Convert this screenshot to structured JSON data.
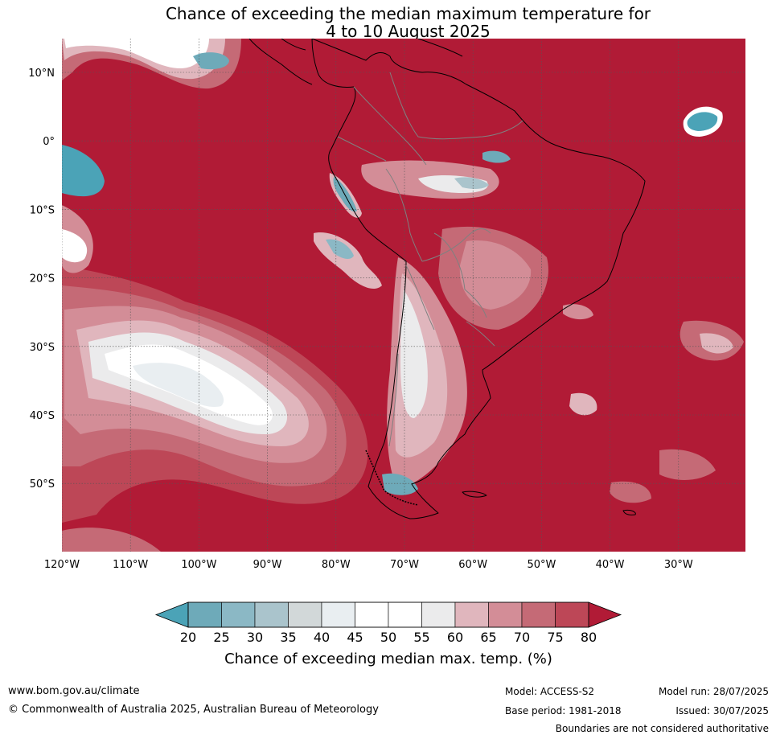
{
  "title_line1": "Chance of exceeding the median maximum temperature for",
  "title_line2": "4 to 10 August 2025",
  "map": {
    "lat_labels": [
      "10°N",
      "0°",
      "10°S",
      "20°S",
      "30°S",
      "40°S",
      "50°S"
    ],
    "lon_labels": [
      "120°W",
      "110°W",
      "100°W",
      "90°W",
      "80°W",
      "70°W",
      "60°W",
      "50°W",
      "40°W",
      "30°W"
    ],
    "background_color": "#b11b36",
    "land_outline_color": "#000000",
    "border_color": "#808080"
  },
  "colorbar": {
    "labels": [
      "20",
      "25",
      "30",
      "35",
      "40",
      "45",
      "50",
      "55",
      "60",
      "65",
      "70",
      "75",
      "80"
    ],
    "colors": [
      "#4ba3b7",
      "#6eaab9",
      "#8bb8c5",
      "#aac4cc",
      "#d2d8d9",
      "#e9eef1",
      "#ffffff",
      "#ffffff",
      "#ebebec",
      "#e0b6bd",
      "#d38d97",
      "#c56a76",
      "#bd4757",
      "#b11b36"
    ],
    "title": "Chance of exceeding median max. temp. (%)"
  },
  "footer": {
    "website": "www.bom.gov.au/climate",
    "copyright": "© Commonwealth of Australia 2025, Australian Bureau of Meteorology",
    "model": "Model: ACCESS-S2",
    "base_period": "Base period: 1981-2018",
    "model_run": "Model run: 28/07/2025",
    "issued": "Issued: 30/07/2025",
    "disclaimer": "Boundaries are not considered authoritative"
  }
}
